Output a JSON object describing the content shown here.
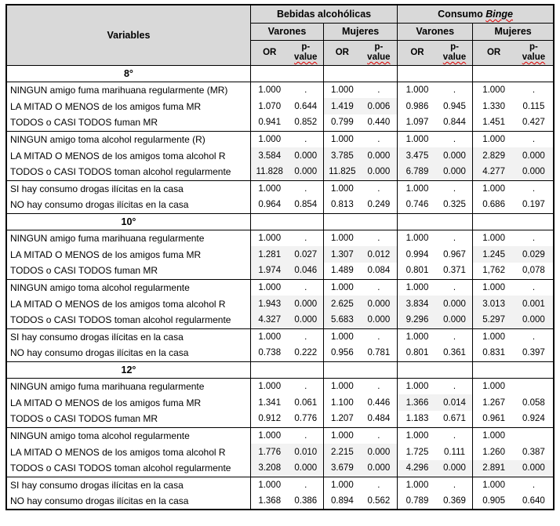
{
  "colors": {
    "header_bg": "#d9d9d9",
    "highlight_bg": "#f2f2f2",
    "border": "#000000",
    "spellcheck_squiggle": "#e00000"
  },
  "table": {
    "header": {
      "variables_label": "Variables",
      "group1_label": "Bebidas alcohólicas",
      "group2_prefix": "Consumo ",
      "group2_italic": "Binge",
      "sub_labels": [
        "Varones",
        "Mujeres",
        "Varones",
        "Mujeres"
      ],
      "or_label": "OR",
      "p_label_line1": "p-",
      "p_label_line2": "value"
    },
    "sections": [
      {
        "grade": "8°",
        "rows": [
          {
            "label": "NINGUN amigo fuma marihuana regularmente (MR)",
            "group_start": true,
            "values": [
              "1.000",
              ".",
              "1.000",
              ".",
              "1.000",
              ".",
              "1.000",
              "."
            ],
            "highlight": [
              false,
              false,
              false,
              false
            ]
          },
          {
            "label": "LA MITAD O MENOS de los amigos fuma MR",
            "group_start": false,
            "values": [
              "1.070",
              "0.644",
              "1.419",
              "0.006",
              "0.986",
              "0.945",
              "1.330",
              "0.115"
            ],
            "highlight": [
              false,
              true,
              false,
              false
            ]
          },
          {
            "label": "TODOS o CASI TODOS fuman MR",
            "group_start": false,
            "values": [
              "0.941",
              "0.852",
              "0.799",
              "0.440",
              "1.097",
              "0.844",
              "1.451",
              "0.427"
            ],
            "highlight": [
              false,
              false,
              false,
              false
            ]
          },
          {
            "label": "NINGUN amigo toma alcohol regularmente (R)",
            "group_start": true,
            "values": [
              "1.000",
              ".",
              "1.000",
              ".",
              "1.000",
              ".",
              "1.000",
              "."
            ],
            "highlight": [
              false,
              false,
              false,
              false
            ]
          },
          {
            "label": "LA MITAD O MENOS de los amigos toma alcohol R",
            "group_start": false,
            "values": [
              "3.584",
              "0.000",
              "3.785",
              "0.000",
              "3.475",
              "0.000",
              "2.829",
              "0.000"
            ],
            "highlight": [
              true,
              true,
              true,
              true
            ]
          },
          {
            "label": "TODOS o CASI TODOS toman alcohol regularmente",
            "group_start": false,
            "values": [
              "11.828",
              "0.000",
              "11.825",
              "0.000",
              "6.789",
              "0.000",
              "4.277",
              "0.000"
            ],
            "highlight": [
              true,
              true,
              true,
              true
            ]
          },
          {
            "label": "SI hay consumo drogas ilícitas en la casa",
            "group_start": true,
            "values": [
              "1.000",
              ".",
              "1.000",
              ".",
              "1.000",
              ".",
              "1.000",
              "."
            ],
            "highlight": [
              false,
              false,
              false,
              false
            ]
          },
          {
            "label": "NO hay consumo drogas ilícitas en la casa",
            "group_start": false,
            "values": [
              "0.964",
              "0.854",
              "0.813",
              "0.249",
              "0.746",
              "0.325",
              "0.686",
              "0.197"
            ],
            "highlight": [
              false,
              false,
              false,
              false
            ]
          }
        ]
      },
      {
        "grade": "10°",
        "rows": [
          {
            "label": "NINGUN amigo fuma marihuana regularmente",
            "group_start": true,
            "values": [
              "1.000",
              ".",
              "1.000",
              ".",
              "1.000",
              ".",
              "1.000",
              "."
            ],
            "highlight": [
              false,
              false,
              false,
              false
            ]
          },
          {
            "label": "LA MITAD O MENOS de los amigos fuma MR",
            "group_start": false,
            "values": [
              "1.281",
              "0.027",
              "1.307",
              "0.012",
              "0.994",
              "0.967",
              "1.245",
              "0.029"
            ],
            "highlight": [
              true,
              true,
              false,
              true
            ]
          },
          {
            "label": "TODOS o CASI TODOS fuman MR",
            "group_start": false,
            "values": [
              "1.974",
              "0.046",
              "1.489",
              "0.084",
              "0.801",
              "0.371",
              "1,762",
              "0,078"
            ],
            "highlight": [
              true,
              false,
              false,
              false
            ]
          },
          {
            "label": "NINGUN amigo toma alcohol regularmente",
            "group_start": true,
            "values": [
              "1.000",
              ".",
              "1.000",
              ".",
              "1.000",
              ".",
              "1.000",
              "."
            ],
            "highlight": [
              false,
              false,
              false,
              false
            ]
          },
          {
            "label": "LA MITAD O MENOS de los amigos toma alcohol R",
            "group_start": false,
            "values": [
              "1.943",
              "0.000",
              "2.625",
              "0.000",
              "3.834",
              "0.000",
              "3.013",
              "0.001"
            ],
            "highlight": [
              true,
              true,
              true,
              true
            ]
          },
          {
            "label": "TODOS o CASI TODOS toman alcohol regularmente",
            "group_start": false,
            "values": [
              "4.327",
              "0.000",
              "5.683",
              "0.000",
              "9.296",
              "0.000",
              "5.297",
              "0.000"
            ],
            "highlight": [
              true,
              true,
              true,
              true
            ]
          },
          {
            "label": "SI hay consumo drogas ilícitas en la casa",
            "group_start": true,
            "values": [
              "1.000",
              ".",
              "1.000",
              ".",
              "1.000",
              ".",
              "1.000",
              "."
            ],
            "highlight": [
              false,
              false,
              false,
              false
            ]
          },
          {
            "label": "NO hay consumo drogas ilícitas en la casa",
            "group_start": false,
            "values": [
              "0.738",
              "0.222",
              "0.956",
              "0.781",
              "0.801",
              "0.361",
              "0.831",
              "0.397"
            ],
            "highlight": [
              false,
              false,
              false,
              false
            ]
          }
        ]
      },
      {
        "grade": "12°",
        "rows": [
          {
            "label": "NINGUN amigo fuma marihuana regularmente",
            "group_start": true,
            "values": [
              "1.000",
              ".",
              "1.000",
              ".",
              "1.000",
              ".",
              "1.000",
              ""
            ],
            "highlight": [
              false,
              false,
              false,
              false
            ]
          },
          {
            "label": "LA MITAD O MENOS de los amigos fuma MR",
            "group_start": false,
            "values": [
              "1.341",
              "0.061",
              "1.100",
              "0.446",
              "1.366",
              "0.014",
              "1.267",
              "0.058"
            ],
            "highlight": [
              false,
              false,
              true,
              false
            ]
          },
          {
            "label": "TODOS o CASI TODOS fuman MR",
            "group_start": false,
            "values": [
              "0.912",
              "0.776",
              "1.207",
              "0.484",
              "1.183",
              "0.671",
              "0.961",
              "0.924"
            ],
            "highlight": [
              false,
              false,
              false,
              false
            ]
          },
          {
            "label": "NINGUN amigo toma alcohol regularmente",
            "group_start": true,
            "values": [
              "1.000",
              ".",
              "1.000",
              ".",
              "1.000",
              ".",
              "1.000",
              ""
            ],
            "highlight": [
              false,
              false,
              false,
              false
            ]
          },
          {
            "label": "LA MITAD O MENOS de los amigos toma alcohol R",
            "group_start": false,
            "values": [
              "1.776",
              "0.010",
              "2.215",
              "0.000",
              "1.725",
              "0.111",
              "1.260",
              "0.387"
            ],
            "highlight": [
              true,
              true,
              false,
              false
            ]
          },
          {
            "label": "TODOS o CASI TODOS toman alcohol regularmente",
            "group_start": false,
            "values": [
              "3.208",
              "0.000",
              "3.679",
              "0.000",
              "4.296",
              "0.000",
              "2.891",
              "0.000"
            ],
            "highlight": [
              true,
              true,
              true,
              true
            ]
          },
          {
            "label": "SI hay consumo drogas ilícitas en la casa",
            "group_start": true,
            "values": [
              "1.000",
              ".",
              "1.000",
              ".",
              "1.000",
              ".",
              "1.000",
              "."
            ],
            "highlight": [
              false,
              false,
              false,
              false
            ]
          },
          {
            "label": "NO hay consumo drogas ilícitas en la casa",
            "group_start": false,
            "values": [
              "1.368",
              "0.386",
              "0.894",
              "0.562",
              "0.789",
              "0.369",
              "0.905",
              "0.640"
            ],
            "highlight": [
              false,
              false,
              false,
              false
            ]
          }
        ]
      }
    ]
  }
}
